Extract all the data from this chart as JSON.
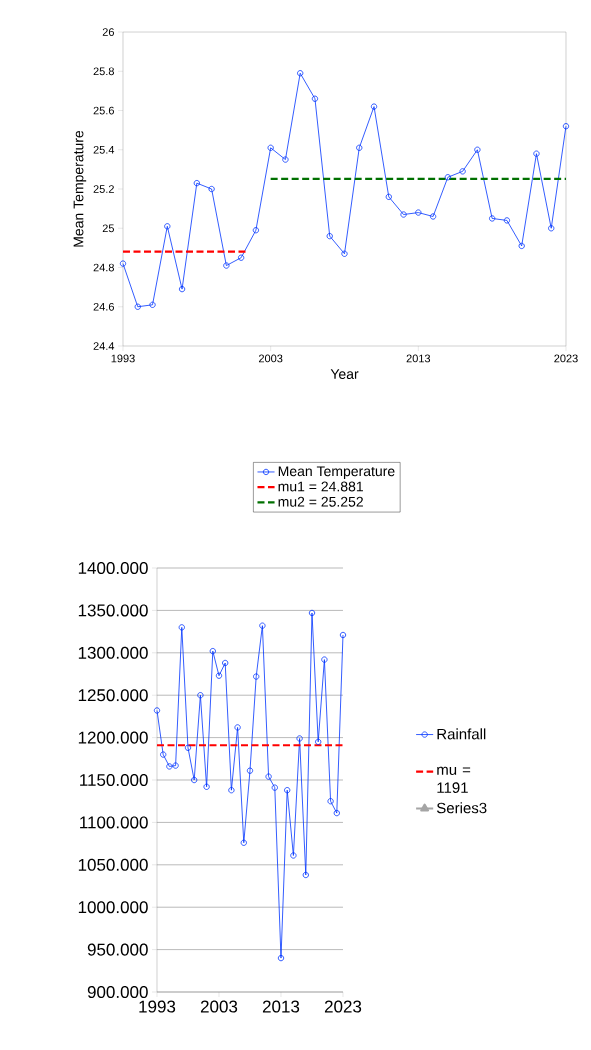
{
  "chart_data": [
    {
      "type": "line",
      "xlabel": "Year",
      "ylabel": "Mean Temperature",
      "legend": "bottom",
      "grid": false,
      "xlim": [
        1993,
        2023
      ],
      "xticks": [
        1993,
        2003,
        2013,
        2023
      ],
      "ylim": [
        24.4,
        26
      ],
      "yticks": [
        24.4,
        24.6,
        24.8,
        25,
        25.2,
        25.4,
        25.6,
        25.8,
        26
      ],
      "x": [
        1993,
        1994,
        1995,
        1996,
        1997,
        1998,
        1999,
        2000,
        2001,
        2002,
        2003,
        2004,
        2005,
        2006,
        2007,
        2008,
        2009,
        2010,
        2011,
        2012,
        2013,
        2014,
        2015,
        2016,
        2017,
        2018,
        2019,
        2020,
        2021,
        2022,
        2023
      ],
      "series": [
        {
          "name": "Mean Temperature",
          "color": "#0033ff",
          "marker": "circle",
          "line_style": "solid",
          "values": [
            24.82,
            24.6,
            24.61,
            25.01,
            24.69,
            25.23,
            25.2,
            24.81,
            24.85,
            24.99,
            25.41,
            25.35,
            25.79,
            25.66,
            24.96,
            24.87,
            25.41,
            25.62,
            25.16,
            25.07,
            25.08,
            25.06,
            25.26,
            25.29,
            25.4,
            25.05,
            25.04,
            24.91,
            25.38,
            25.0,
            25.52
          ]
        },
        {
          "name": "mu1 = 24.881",
          "color": "#ff0000",
          "marker": "none",
          "line_style": "dashed",
          "x": [
            1993,
            2001.5
          ],
          "values": [
            24.881,
            24.881
          ]
        },
        {
          "name": "mu2 = 25.252",
          "color": "#007000",
          "marker": "none",
          "line_style": "dashed",
          "x": [
            2003,
            2023
          ],
          "values": [
            25.252,
            25.252
          ]
        }
      ]
    },
    {
      "type": "line",
      "legend": "right",
      "grid": "y",
      "xlim": [
        1993,
        2023
      ],
      "xticks": [
        1993,
        2003,
        2013,
        2023
      ],
      "ylim": [
        900,
        1400
      ],
      "yticks": [
        {
          "value": 900,
          "label": "900.000"
        },
        {
          "value": 950,
          "label": "950.000"
        },
        {
          "value": 1000,
          "label": "1000.000"
        },
        {
          "value": 1050,
          "label": "1050.000"
        },
        {
          "value": 1100,
          "label": "1100.000"
        },
        {
          "value": 1150,
          "label": "1150.000"
        },
        {
          "value": 1200,
          "label": "1200.000"
        },
        {
          "value": 1250,
          "label": "1250.000"
        },
        {
          "value": 1300,
          "label": "1300.000"
        },
        {
          "value": 1350,
          "label": "1350.000"
        },
        {
          "value": 1400,
          "label": "1400.000"
        }
      ],
      "x": [
        1993,
        1994,
        1995,
        1996,
        1997,
        1998,
        1999,
        2000,
        2001,
        2002,
        2003,
        2004,
        2005,
        2006,
        2007,
        2008,
        2009,
        2010,
        2011,
        2012,
        2013,
        2014,
        2015,
        2016,
        2017,
        2018,
        2019,
        2020,
        2021,
        2022,
        2023
      ],
      "series": [
        {
          "name": "Rainfall",
          "color": "#0033ff",
          "marker": "circle",
          "line_style": "solid",
          "values": [
            1232,
            1180,
            1166,
            1167,
            1330,
            1188,
            1150,
            1250,
            1142,
            1302,
            1273,
            1288,
            1138,
            1212,
            1076,
            1161,
            1272,
            1332,
            1154,
            1141,
            940,
            1138,
            1061,
            1199,
            1038,
            1347,
            1195,
            1292,
            1125,
            1111,
            1321
          ]
        },
        {
          "name": "mu = 1191",
          "color": "#ff0000",
          "marker": "none",
          "line_style": "dashed",
          "x": [
            1993,
            2023
          ],
          "values": [
            1191,
            1191
          ]
        },
        {
          "name": "Series3",
          "color": "#a5a5a5",
          "marker": "triangle",
          "line_style": "solid",
          "values": [
            null,
            null,
            null,
            null,
            null,
            null,
            null,
            null,
            null,
            null,
            null,
            null,
            null,
            null,
            null,
            null,
            null,
            null,
            null,
            null,
            null,
            null,
            null,
            null,
            null,
            null,
            null,
            null,
            null,
            null,
            null
          ]
        }
      ]
    }
  ]
}
